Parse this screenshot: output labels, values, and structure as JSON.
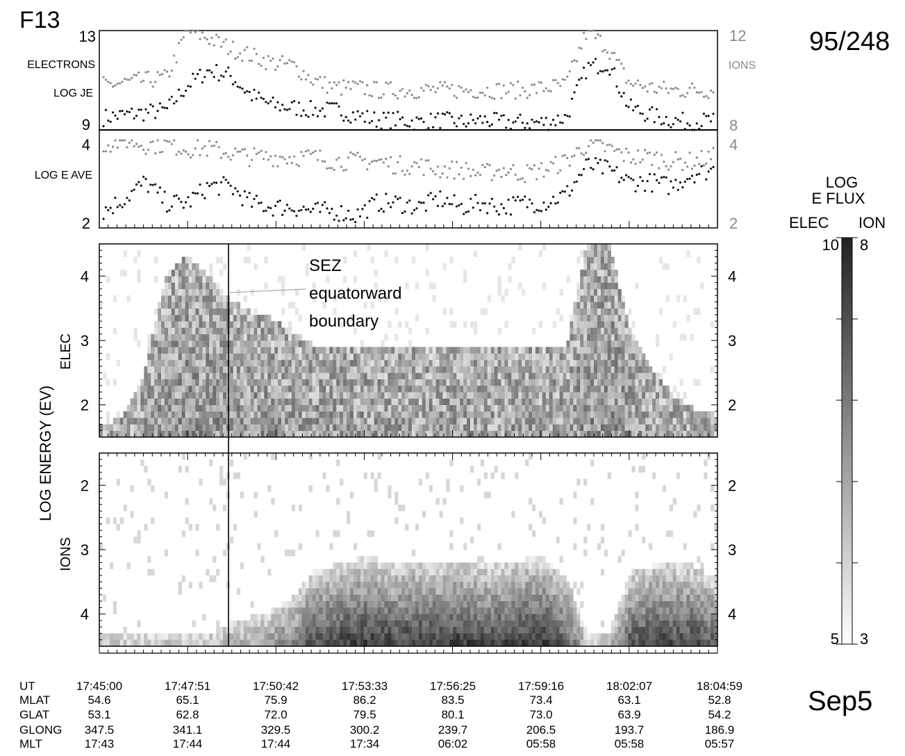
{
  "header": {
    "satellite": "F13",
    "orbit": "95/248",
    "date": "Sep5"
  },
  "panel_flux": {
    "left_label_1": "ELECTRONS",
    "left_label_2": "LOG JE",
    "right_label": "IONS",
    "left_ticks": [
      "13",
      "9"
    ],
    "right_ticks": [
      "12",
      "8"
    ],
    "left_range": [
      9,
      13
    ],
    "right_range": [
      8,
      12
    ]
  },
  "panel_eave": {
    "left_label": "LOG E AVE",
    "ticks": [
      "4",
      "2"
    ],
    "range": [
      2,
      4
    ]
  },
  "spectrogram": {
    "y_axis_label": "LOG ENERGY (EV)",
    "elec_label": "ELEC",
    "ions_label": "IONS",
    "elec_ticks": [
      "4",
      "3",
      "2"
    ],
    "ions_ticks": [
      "2",
      "3",
      "4"
    ],
    "annotation_lines": [
      "SEZ",
      "equatorward",
      "boundary"
    ]
  },
  "colorbar": {
    "title_1": "LOG",
    "title_2": "E FLUX",
    "elec_header": "ELEC",
    "ion_header": "ION",
    "elec_max": "10",
    "ion_max": "8",
    "elec_min": "5",
    "ion_min": "3",
    "colors": [
      "#ffffff",
      "#222222"
    ]
  },
  "ephemeris": {
    "row_labels": [
      "UT",
      "MLAT",
      "GLAT",
      "GLONG",
      "MLT"
    ],
    "columns": [
      {
        "UT": "17:45:00",
        "MLAT": "54.6",
        "GLAT": "53.1",
        "GLONG": "347.5",
        "MLT": "17:43"
      },
      {
        "UT": "17:47:51",
        "MLAT": "65.1",
        "GLAT": "62.8",
        "GLONG": "341.1",
        "MLT": "17:44"
      },
      {
        "UT": "17:50:42",
        "MLAT": "75.9",
        "GLAT": "72.0",
        "GLONG": "329.5",
        "MLT": "17:44"
      },
      {
        "UT": "17:53:33",
        "MLAT": "86.2",
        "GLAT": "79.5",
        "GLONG": "300.2",
        "MLT": "17:34"
      },
      {
        "UT": "17:56:25",
        "MLAT": "83.5",
        "GLAT": "80.1",
        "GLONG": "239.7",
        "MLT": "06:02"
      },
      {
        "UT": "17:59:16",
        "MLAT": "73.4",
        "GLAT": "73.0",
        "GLONG": "206.5",
        "MLT": "05:58"
      },
      {
        "UT": "18:02:07",
        "MLAT": "63.1",
        "GLAT": "63.9",
        "GLONG": "193.7",
        "MLT": "05:58"
      },
      {
        "UT": "18:04:59",
        "MLAT": "52.8",
        "GLAT": "54.2",
        "GLONG": "186.9",
        "MLT": "05:57"
      }
    ]
  },
  "chart_data": {
    "type": "scatter",
    "x_unit": "UT",
    "x_ticks": [
      "17:45:00",
      "17:47:51",
      "17:50:42",
      "17:53:33",
      "17:56:25",
      "17:59:16",
      "18:02:07",
      "18:04:59"
    ],
    "colors": {
      "electrons": "#111111",
      "ions": "#8a8a8a"
    },
    "series": [
      {
        "name": "ELECTRONS",
        "panel": "LOG JE",
        "profile": [
          9.5,
          9.6,
          9.7,
          9.8,
          10.8,
          11.4,
          11.2,
          10.4,
          10.0,
          9.9,
          9.8,
          9.8,
          9.6,
          9.4,
          9.4,
          9.3,
          9.4,
          9.3,
          9.4,
          9.3,
          9.3,
          9.3,
          9.5,
          11.5,
          11.7,
          9.9,
          9.6,
          9.4,
          9.3,
          9.4
        ]
      },
      {
        "name": "IONS",
        "panel": "LOG JE",
        "profile": [
          9.8,
          9.9,
          10.0,
          10.1,
          12.0,
          11.7,
          11.3,
          11.0,
          10.7,
          10.6,
          10.0,
          9.7,
          9.7,
          9.6,
          9.6,
          9.6,
          9.6,
          9.6,
          9.6,
          9.6,
          9.6,
          9.7,
          9.8,
          12.0,
          11.3,
          9.9,
          9.7,
          9.6,
          9.6,
          9.6
        ]
      },
      {
        "name": "ELECTRONS",
        "panel": "LOG E AVE",
        "profile": [
          2.3,
          2.6,
          3.0,
          2.5,
          2.5,
          2.9,
          2.9,
          2.5,
          2.4,
          2.4,
          2.3,
          2.3,
          2.2,
          2.5,
          2.5,
          2.4,
          2.6,
          2.4,
          2.5,
          2.4,
          2.5,
          2.5,
          2.7,
          3.4,
          3.3,
          3.0,
          3.0,
          2.9,
          3.2,
          3.3
        ]
      },
      {
        "name": "IONS",
        "panel": "LOG E AVE",
        "profile": [
          3.9,
          4.0,
          3.9,
          3.9,
          3.8,
          3.8,
          3.7,
          3.6,
          3.6,
          3.6,
          3.6,
          3.5,
          3.5,
          3.5,
          3.4,
          3.4,
          3.3,
          3.3,
          3.2,
          3.3,
          3.2,
          3.3,
          3.5,
          3.9,
          3.8,
          3.6,
          3.6,
          3.5,
          3.5,
          3.6
        ]
      }
    ],
    "spectrogram_elec": {
      "energy_range": [
        1.5,
        4.5
      ],
      "upper_edge": [
        1.5,
        1.7,
        2.3,
        3.8,
        4.2,
        3.9,
        3.5,
        3.3,
        3.2,
        3.0,
        2.8,
        2.8,
        2.8,
        2.8,
        2.8,
        2.7,
        2.8,
        2.8,
        2.7,
        2.8,
        2.7,
        2.7,
        2.8,
        4.5,
        4.3,
        3.0,
        2.4,
        2.0,
        1.8,
        1.7
      ]
    },
    "spectrogram_ions": {
      "energy_range": [
        1.5,
        4.5
      ],
      "lower_edge": [
        4.5,
        4.5,
        4.5,
        4.5,
        4.5,
        4.5,
        4.3,
        4.2,
        4.1,
        3.9,
        3.5,
        3.4,
        3.3,
        3.3,
        3.4,
        3.3,
        3.4,
        3.3,
        3.4,
        3.4,
        3.3,
        3.3,
        3.6,
        4.5,
        4.4,
        3.5,
        3.4,
        3.4,
        3.4,
        3.6
      ]
    }
  }
}
